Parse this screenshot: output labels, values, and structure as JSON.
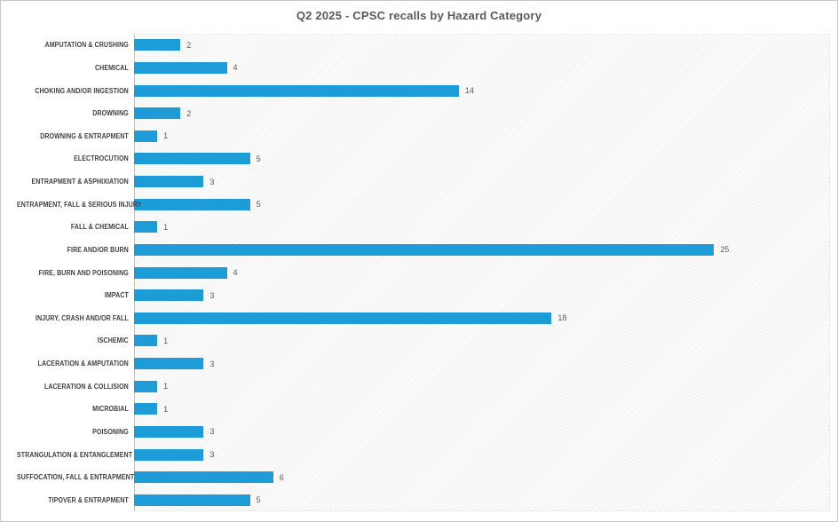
{
  "title": "Q2 2025 - CPSC recalls by Hazard Category",
  "chart_data": {
    "type": "bar",
    "orientation": "horizontal",
    "title": "Q2 2025 - CPSC recalls by Hazard Category",
    "categories": [
      "AMPUTATION & CRUSHING",
      "CHEMICAL",
      "CHOKING AND/OR INGESTION",
      "DROWNING",
      "DROWNING & ENTRAPMENT",
      "ELECTROCUTION",
      "ENTRAPMENT & ASPHIXIATION",
      "ENTRAPMENT, FALL & SERIOUS INJURY",
      "FALL & CHEMICAL",
      "FIRE AND/OR BURN",
      "FIRE, BURN AND POISONING",
      "IMPACT",
      "INJURY, CRASH AND/OR FALL",
      "ISCHEMIC",
      "LACERATION & AMPUTATION",
      "LACERATION & COLLISION",
      "MICROBIAL",
      "POISONING",
      "STRANGULATION & ENTANGLEMENT",
      "SUFFOCATION, FALL & ENTRAPMENT",
      "TIPOVER & ENTRAPMENT"
    ],
    "values": [
      2,
      4,
      14,
      2,
      1,
      5,
      3,
      5,
      1,
      25,
      4,
      3,
      18,
      1,
      3,
      1,
      1,
      3,
      3,
      6,
      5
    ],
    "data_labels": [
      2,
      4,
      14,
      2,
      1,
      5,
      3,
      5,
      1,
      25,
      4,
      3,
      18,
      1,
      3,
      1,
      1,
      3,
      3,
      6,
      5
    ],
    "xlabel": "",
    "ylabel": "",
    "xlim": [
      0,
      30
    ],
    "grid": false,
    "legend": false,
    "bar_color": "#1e9cd8",
    "title_color": "#595959",
    "category_label_color": "#3f3f3f",
    "value_label_color": "#595959"
  }
}
